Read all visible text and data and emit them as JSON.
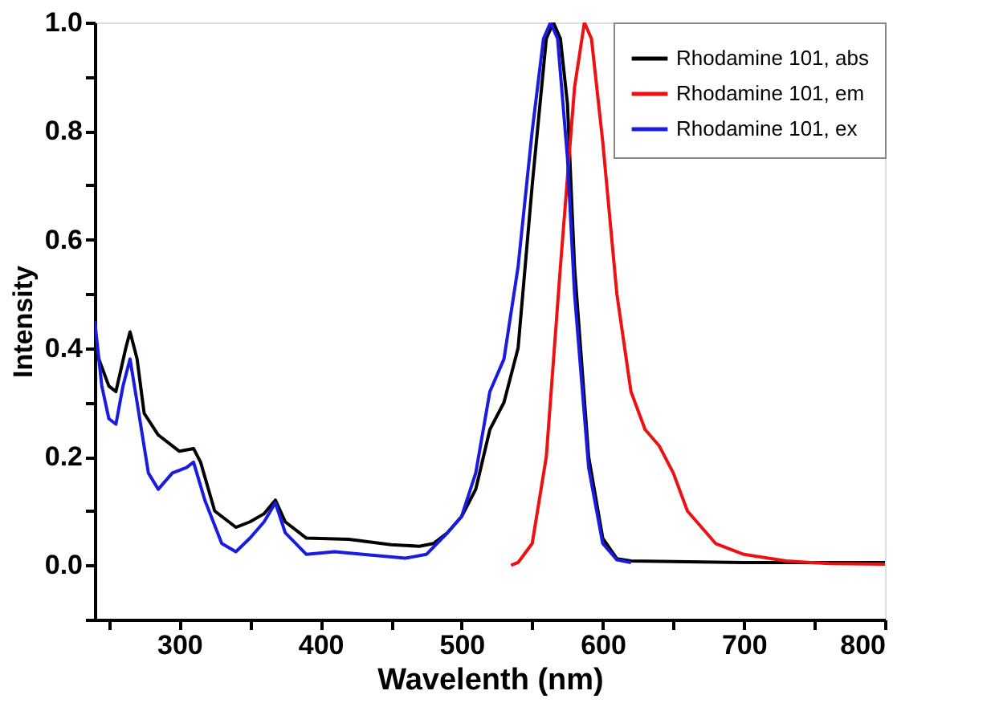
{
  "chart_data": {
    "type": "line",
    "xlabel": "Wavelenth (nm)",
    "ylabel": "Intensity",
    "xlim": [
      240,
      800
    ],
    "ylim": [
      -0.1,
      1.0
    ],
    "xticks": [
      {
        "value": 250,
        "label": null
      },
      300,
      {
        "value": 350,
        "label": null
      },
      400,
      {
        "value": 450,
        "label": null
      },
      500,
      {
        "value": 550,
        "label": null
      },
      600,
      {
        "value": 650,
        "label": null
      },
      700,
      {
        "value": 750,
        "label": null
      },
      800
    ],
    "yticks": [
      {
        "value": -0.1,
        "label": null
      },
      {
        "value": 0,
        "label": "0.0"
      },
      {
        "value": 0.1,
        "label": null
      },
      0.2,
      {
        "value": 0.3,
        "label": null
      },
      0.4,
      {
        "value": 0.5,
        "label": null
      },
      0.6,
      {
        "value": 0.7,
        "label": null
      },
      0.8,
      {
        "value": 0.9,
        "label": null
      },
      {
        "value": 1.0,
        "label": "1.0"
      }
    ],
    "grid": false,
    "legend": "top right",
    "marker": "none",
    "line_style": "solid",
    "series": [
      {
        "name": "Rhodamine 101, abs",
        "color": "#000000",
        "x": [
          240,
          250,
          255,
          262,
          265,
          270,
          275,
          285,
          300,
          310,
          315,
          325,
          340,
          350,
          360,
          368,
          375,
          390,
          420,
          450,
          470,
          480,
          490,
          500,
          510,
          520,
          530,
          540,
          550,
          560,
          565,
          570,
          575,
          580,
          590,
          600,
          610,
          620,
          700,
          800
        ],
        "values": [
          0.4,
          0.33,
          0.32,
          0.4,
          0.43,
          0.38,
          0.28,
          0.24,
          0.21,
          0.215,
          0.19,
          0.1,
          0.07,
          0.08,
          0.095,
          0.12,
          0.08,
          0.05,
          0.048,
          0.038,
          0.035,
          0.04,
          0.06,
          0.09,
          0.14,
          0.25,
          0.3,
          0.4,
          0.7,
          0.97,
          1.0,
          0.97,
          0.85,
          0.55,
          0.2,
          0.05,
          0.012,
          0.008,
          0.005,
          0.005
        ]
      },
      {
        "name": "Rhodamine 101, em",
        "color": "#ee1111",
        "x": [
          535,
          540,
          550,
          560,
          570,
          580,
          587,
          592,
          600,
          610,
          620,
          630,
          640,
          650,
          660,
          680,
          700,
          730,
          760,
          800
        ],
        "values": [
          0.0,
          0.005,
          0.04,
          0.2,
          0.55,
          0.88,
          1.0,
          0.97,
          0.78,
          0.5,
          0.32,
          0.25,
          0.22,
          0.17,
          0.1,
          0.04,
          0.02,
          0.008,
          0.003,
          0.002
        ]
      },
      {
        "name": "Rhodamine 101, ex",
        "color": "#1a1ae0",
        "x": [
          240,
          245,
          250,
          255,
          260,
          265,
          270,
          278,
          285,
          295,
          305,
          310,
          318,
          330,
          340,
          350,
          360,
          368,
          375,
          390,
          410,
          430,
          460,
          475,
          490,
          500,
          510,
          520,
          530,
          540,
          550,
          558,
          563,
          568,
          575,
          580,
          590,
          600,
          610,
          620
        ],
        "values": [
          0.45,
          0.33,
          0.27,
          0.26,
          0.33,
          0.38,
          0.3,
          0.17,
          0.14,
          0.17,
          0.18,
          0.19,
          0.12,
          0.04,
          0.025,
          0.05,
          0.08,
          0.115,
          0.06,
          0.02,
          0.025,
          0.02,
          0.013,
          0.02,
          0.06,
          0.09,
          0.17,
          0.32,
          0.38,
          0.55,
          0.8,
          0.97,
          1.0,
          0.97,
          0.75,
          0.5,
          0.18,
          0.04,
          0.01,
          0.005
        ]
      }
    ]
  }
}
